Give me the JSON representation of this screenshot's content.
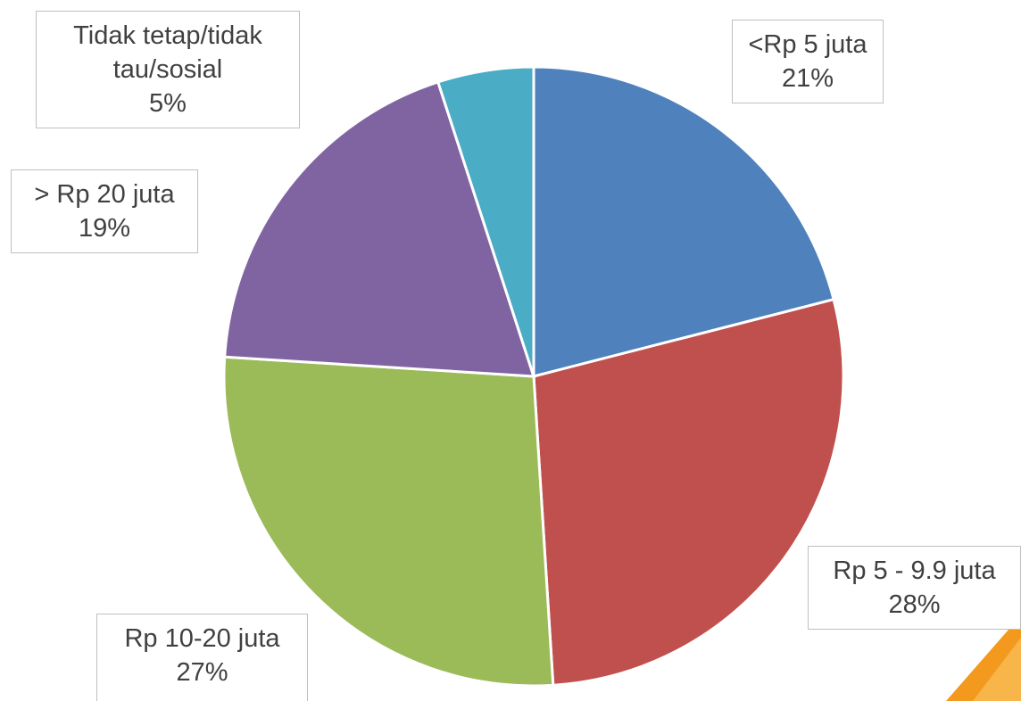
{
  "chart_data": {
    "type": "pie",
    "categories": [
      "<Rp 5 juta",
      "Rp 5 - 9.9 juta",
      "Rp 10-20 juta",
      "> Rp 20 juta",
      "Tidak tetap/tidak tau/sosial"
    ],
    "values": [
      21,
      28,
      27,
      19,
      5
    ],
    "value_labels": [
      "21%",
      "28%",
      "27%",
      "19%",
      "5%"
    ],
    "colors": [
      "#4f81bd",
      "#c0504d",
      "#9bbb59",
      "#8064a2",
      "#4bacc6"
    ]
  }
}
